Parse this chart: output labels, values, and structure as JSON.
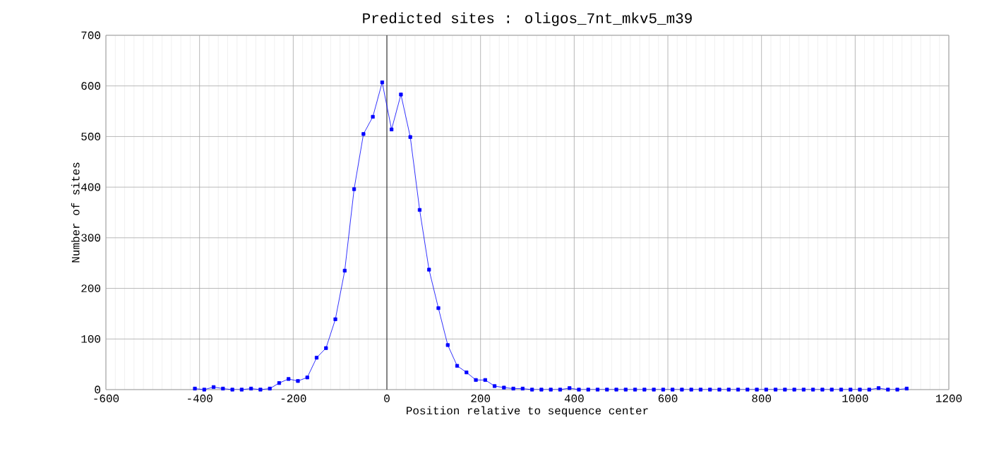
{
  "chart_data": {
    "type": "line",
    "title": "Predicted sites : oligos_7nt_mkv5_m39",
    "xlabel": "Position relative to sequence center",
    "ylabel": "Number of sites",
    "x": [
      -410,
      -390,
      -370,
      -350,
      -330,
      -310,
      -290,
      -270,
      -250,
      -230,
      -210,
      -190,
      -170,
      -150,
      -130,
      -110,
      -90,
      -70,
      -50,
      -30,
      -10,
      10,
      30,
      50,
      70,
      90,
      110,
      130,
      150,
      170,
      190,
      210,
      230,
      250,
      270,
      290,
      310,
      330,
      350,
      370,
      390,
      410,
      430,
      450,
      470,
      490,
      510,
      530,
      550,
      570,
      590,
      610,
      630,
      650,
      670,
      690,
      710,
      730,
      750,
      770,
      790,
      810,
      830,
      850,
      870,
      890,
      910,
      930,
      950,
      970,
      990,
      1010,
      1030,
      1050,
      1070,
      1090,
      1110
    ],
    "series": [
      {
        "color": "#0000ff",
        "values": [
          2,
          0,
          5,
          2,
          0,
          0,
          2,
          0,
          2,
          13,
          21,
          17,
          24,
          63,
          82,
          139,
          235,
          396,
          505,
          539,
          607,
          514,
          583,
          499,
          355,
          237,
          161,
          88,
          47,
          34,
          19,
          19,
          7,
          4,
          2,
          2,
          0,
          0,
          0,
          0,
          3,
          0,
          0,
          0,
          0,
          0,
          0,
          0,
          0,
          0,
          0,
          0,
          0,
          0,
          0,
          0,
          0,
          0,
          0,
          0,
          0,
          0,
          0,
          0,
          0,
          0,
          0,
          0,
          0,
          0,
          0,
          0,
          0,
          3,
          0,
          0,
          2
        ]
      }
    ],
    "xlim": [
      -600,
      1200
    ],
    "xticks": [
      -600,
      -400,
      -200,
      0,
      200,
      400,
      600,
      800,
      1000,
      1200
    ],
    "ylim": [
      0,
      700
    ],
    "yticks": [
      0,
      100,
      200,
      300,
      400,
      500,
      600,
      700
    ],
    "grid": true,
    "marker": "square",
    "line_style": "solid",
    "ref_lines": [
      {
        "axis": "x",
        "value": 0,
        "color": "#000000"
      }
    ]
  }
}
